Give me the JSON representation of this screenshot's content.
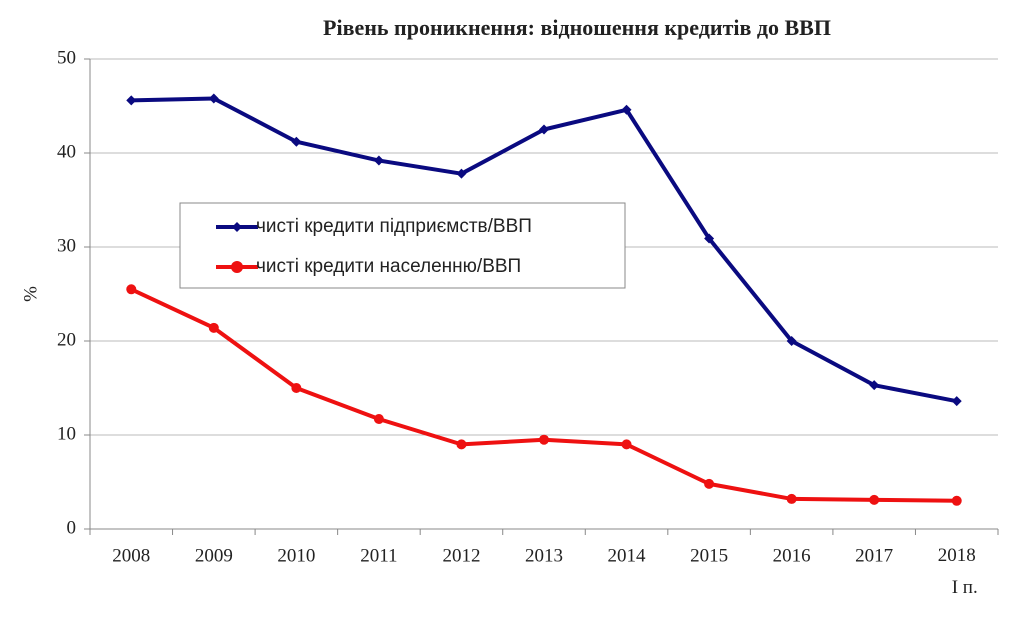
{
  "chart_data": {
    "type": "line",
    "title": "Рівень проникнення: відношення кредитів до ВВП",
    "y_label": "%",
    "categories": [
      "2008",
      "2009",
      "2010",
      "2011",
      "2012",
      "2013",
      "2014",
      "2015",
      "2016",
      "2017",
      "2018\nI п."
    ],
    "series": [
      {
        "name": "чисті кредити підприємств/ВВП",
        "color": "#0a0a80",
        "marker": "diamond",
        "values": [
          45.6,
          45.8,
          41.2,
          39.2,
          37.8,
          42.5,
          44.6,
          30.9,
          20.0,
          15.3,
          13.6
        ]
      },
      {
        "name": "чисті кредити населенню/ВВП",
        "color": "#ee1111",
        "marker": "circle",
        "values": [
          25.5,
          21.4,
          15.0,
          11.7,
          9.0,
          9.5,
          9.0,
          4.8,
          3.2,
          3.1,
          3.0
        ]
      }
    ],
    "ylim": [
      0,
      50
    ],
    "yticks": [
      0,
      10,
      20,
      30,
      40,
      50
    ],
    "grid": true
  }
}
